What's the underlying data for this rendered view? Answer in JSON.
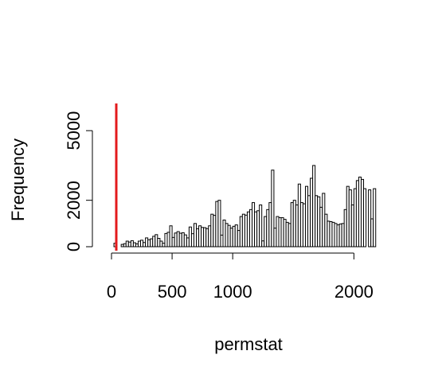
{
  "chart_data": {
    "type": "bar",
    "title": "",
    "xlabel": "permstat",
    "ylabel": "Frequency",
    "xlim": [
      0,
      2300
    ],
    "ylim": [
      0,
      6000
    ],
    "x_ticks": [
      0,
      500,
      1000,
      2000
    ],
    "y_ticks": [
      0,
      2000,
      5000
    ],
    "grid": false,
    "bin_width": 20,
    "bin_start": 0,
    "values": [
      0,
      150,
      0,
      0,
      100,
      130,
      240,
      200,
      260,
      170,
      120,
      240,
      280,
      180,
      380,
      300,
      340,
      450,
      520,
      360,
      240,
      150,
      570,
      620,
      900,
      400,
      590,
      650,
      580,
      600,
      510,
      380,
      850,
      560,
      1000,
      770,
      900,
      830,
      820,
      780,
      900,
      1400,
      1350,
      1950,
      2000,
      500,
      1150,
      1000,
      920,
      800,
      880,
      940,
      700,
      1300,
      1400,
      1360,
      1500,
      1600,
      1900,
      1500,
      1550,
      1800,
      250,
      1300,
      1600,
      1900,
      3300,
      800,
      1300,
      1250,
      1250,
      1180,
      1050,
      1000,
      1900,
      2000,
      1800,
      2700,
      1900,
      1850,
      2600,
      2200,
      2950,
      3500,
      2200,
      2150,
      1700,
      2300,
      1400,
      1100,
      1080,
      1050,
      1000,
      940,
      980,
      1000,
      1600,
      2600,
      2450,
      1800,
      2500,
      2850,
      3000,
      2900,
      2500,
      0,
      2450,
      1200,
      2500,
      0,
      0
    ]
  },
  "vline": {
    "x": 0,
    "color": "#e31a1c"
  },
  "colors": {
    "bar_fill": "#ffffff",
    "bar_stroke": "#000000",
    "axis": "#000000"
  }
}
